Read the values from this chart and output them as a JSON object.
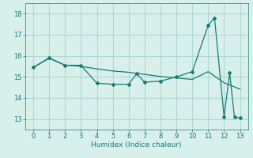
{
  "x_data": [
    0,
    1,
    2,
    3,
    4,
    5,
    6,
    6.5,
    7,
    8,
    9,
    10,
    11,
    11.4,
    12,
    12.35,
    12.65,
    13
  ],
  "y_data": [
    15.45,
    15.9,
    15.55,
    15.55,
    14.7,
    14.65,
    14.65,
    15.15,
    14.75,
    14.8,
    15.0,
    15.25,
    17.45,
    17.8,
    13.1,
    15.2,
    13.1,
    13.05
  ],
  "x_trend": [
    0,
    1,
    2,
    3,
    4,
    5,
    6,
    7,
    8,
    9,
    10,
    11,
    12,
    13
  ],
  "y_trend": [
    15.45,
    15.88,
    15.56,
    15.5,
    15.38,
    15.28,
    15.22,
    15.12,
    15.02,
    14.95,
    14.88,
    15.25,
    14.72,
    14.42
  ],
  "xlabel": "Humidex (Indice chaleur)",
  "ylim": [
    12.5,
    18.5
  ],
  "xlim": [
    -0.5,
    13.5
  ],
  "yticks": [
    13,
    14,
    15,
    16,
    17,
    18
  ],
  "xticks": [
    0,
    1,
    2,
    3,
    4,
    5,
    6,
    7,
    8,
    9,
    10,
    11,
    12,
    13
  ],
  "line_color": "#1a7a6e",
  "bg_color": "#d8f0ec",
  "grid_color": "#b0d8d0"
}
